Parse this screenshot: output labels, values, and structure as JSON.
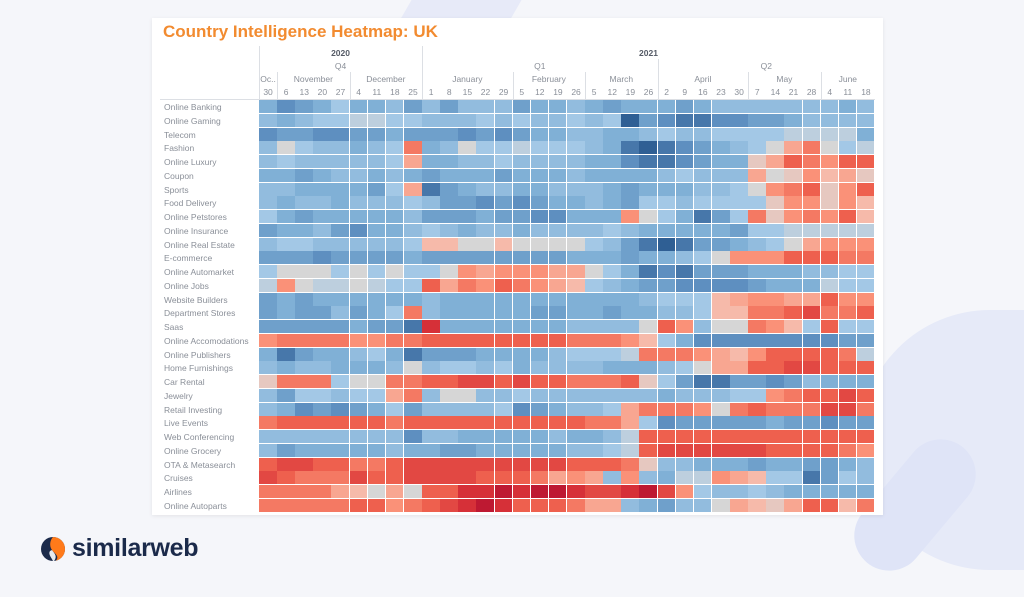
{
  "title": "Country Intelligence Heatmap: UK",
  "brand": "similarweb",
  "colors": {
    "title": "#f28b30",
    "brand_navy": "#1b2a4a",
    "brand_orange": "#ff7a1a",
    "negative": "#2f5f94",
    "neutral": "#d6d6d6",
    "positive": "#c51d30"
  },
  "chart_data": {
    "type": "heatmap",
    "title": "Country Intelligence Heatmap: UK",
    "color_scale": "diverging blue-gray-red (relative index, blue = low, red = high)",
    "legend": "none",
    "columns": [
      {
        "year": "2020",
        "quarter": "Q4",
        "month": "Oc..",
        "day": "30"
      },
      {
        "year": "2020",
        "quarter": "Q4",
        "month": "November",
        "day": "6"
      },
      {
        "year": "2020",
        "quarter": "Q4",
        "month": "November",
        "day": "13"
      },
      {
        "year": "2020",
        "quarter": "Q4",
        "month": "November",
        "day": "20"
      },
      {
        "year": "2020",
        "quarter": "Q4",
        "month": "November",
        "day": "27"
      },
      {
        "year": "2020",
        "quarter": "Q4",
        "month": "December",
        "day": "4"
      },
      {
        "year": "2020",
        "quarter": "Q4",
        "month": "December",
        "day": "11"
      },
      {
        "year": "2020",
        "quarter": "Q4",
        "month": "December",
        "day": "18"
      },
      {
        "year": "2020",
        "quarter": "Q4",
        "month": "December",
        "day": "25"
      },
      {
        "year": "2021",
        "quarter": "Q1",
        "month": "January",
        "day": "1"
      },
      {
        "year": "2021",
        "quarter": "Q1",
        "month": "January",
        "day": "8"
      },
      {
        "year": "2021",
        "quarter": "Q1",
        "month": "January",
        "day": "15"
      },
      {
        "year": "2021",
        "quarter": "Q1",
        "month": "January",
        "day": "22"
      },
      {
        "year": "2021",
        "quarter": "Q1",
        "month": "January",
        "day": "29"
      },
      {
        "year": "2021",
        "quarter": "Q1",
        "month": "February",
        "day": "5"
      },
      {
        "year": "2021",
        "quarter": "Q1",
        "month": "February",
        "day": "12"
      },
      {
        "year": "2021",
        "quarter": "Q1",
        "month": "February",
        "day": "19"
      },
      {
        "year": "2021",
        "quarter": "Q1",
        "month": "February",
        "day": "26"
      },
      {
        "year": "2021",
        "quarter": "Q1",
        "month": "March",
        "day": "5"
      },
      {
        "year": "2021",
        "quarter": "Q1",
        "month": "March",
        "day": "12"
      },
      {
        "year": "2021",
        "quarter": "Q1",
        "month": "March",
        "day": "19"
      },
      {
        "year": "2021",
        "quarter": "Q1",
        "month": "March",
        "day": "26"
      },
      {
        "year": "2021",
        "quarter": "Q2",
        "month": "April",
        "day": "2"
      },
      {
        "year": "2021",
        "quarter": "Q2",
        "month": "April",
        "day": "9"
      },
      {
        "year": "2021",
        "quarter": "Q2",
        "month": "April",
        "day": "16"
      },
      {
        "year": "2021",
        "quarter": "Q2",
        "month": "April",
        "day": "23"
      },
      {
        "year": "2021",
        "quarter": "Q2",
        "month": "April",
        "day": "30"
      },
      {
        "year": "2021",
        "quarter": "Q2",
        "month": "May",
        "day": "7"
      },
      {
        "year": "2021",
        "quarter": "Q2",
        "month": "May",
        "day": "14"
      },
      {
        "year": "2021",
        "quarter": "Q2",
        "month": "May",
        "day": "21"
      },
      {
        "year": "2021",
        "quarter": "Q2",
        "month": "May",
        "day": "28"
      },
      {
        "year": "2021",
        "quarter": "Q2",
        "month": "June",
        "day": "4"
      },
      {
        "year": "2021",
        "quarter": "Q2",
        "month": "June",
        "day": "11"
      },
      {
        "year": "2021",
        "quarter": "Q2",
        "month": "June",
        "day": "18"
      }
    ],
    "rows": [
      "Online Banking",
      "Online Gaming",
      "Telecom",
      "Fashion",
      "Online Luxury",
      "Coupon",
      "Sports",
      "Food Delivery",
      "Online Petstores",
      "Online Insurance",
      "Online Real Estate",
      "E-commerce",
      "Online Automarket",
      "Online Jobs",
      "Website Builders",
      "Department Stores",
      "Saas",
      "Online Accomodations",
      "Online Publishers",
      "Home Furnishings",
      "Car Rental",
      "Jewelry",
      "Retail Investing",
      "Live Events",
      "Web Conferencing",
      "Online Grocery",
      "OTA & Metasearch",
      "Cruises",
      "Airlines",
      "Online Autoparts"
    ],
    "values": [
      [
        -2,
        -3,
        -2.5,
        -2,
        -1,
        -2,
        -2,
        -1.5,
        -2.5,
        -1.5,
        -2.5,
        -1.5,
        -1.5,
        -1.5,
        -2.5,
        -2,
        -2,
        -1.5,
        -2,
        -2.5,
        -2,
        -2,
        -2,
        -2.5,
        -2,
        -1.5,
        -1.5,
        -1.5,
        -1.5,
        -1.5,
        -1.5,
        -1.5,
        -2,
        -1.5
      ],
      [
        -1.5,
        -2,
        -1.5,
        -1,
        -1,
        -0.5,
        -0.5,
        -1,
        -1,
        -1.5,
        -1.5,
        -1.5,
        -1,
        -1.5,
        -1,
        -1.5,
        -1.5,
        -1,
        -1.5,
        -1,
        -4,
        -2.5,
        -3,
        -3.5,
        -3.5,
        -3,
        -3,
        -2.5,
        -2.5,
        -2,
        -1.5,
        -1.5,
        -1.5,
        -1.5
      ],
      [
        -3,
        -2.5,
        -2.5,
        -3,
        -3,
        -2.5,
        -2.5,
        -2,
        -2.5,
        -2.5,
        -2.5,
        -3,
        -2.5,
        -3,
        -2.5,
        -2,
        -2,
        -1.5,
        -1.5,
        -2,
        -2,
        -1.5,
        -1,
        -1.5,
        -1.5,
        -1,
        -1,
        -1,
        -1,
        -0.5,
        -0.5,
        -0.5,
        -0.5,
        -2
      ],
      [
        -1.5,
        0,
        -1,
        -1.5,
        -1.5,
        -2,
        -1.5,
        -1,
        2.5,
        -2,
        -1.5,
        0,
        -1,
        -1,
        -0.5,
        -1,
        -1,
        -1,
        -1.5,
        -2,
        -3.5,
        -4,
        -3.5,
        -3,
        -2.5,
        -2,
        -1.5,
        -1,
        0,
        1.5,
        2.5,
        0,
        -1,
        -0.5
      ],
      [
        -1.5,
        -1,
        -1.5,
        -1.5,
        -1.5,
        -1.5,
        -1.5,
        -1,
        1.5,
        -2,
        -2,
        -1.5,
        -1.5,
        -1,
        -1.5,
        -1.5,
        -1.5,
        -1.5,
        -2,
        -2,
        -3,
        -3.5,
        -3.5,
        -3,
        -2.5,
        -2,
        -2,
        0.5,
        1.5,
        3,
        2.5,
        2,
        3,
        3
      ],
      [
        -2,
        -2,
        -2.5,
        -2,
        -1.5,
        -1.5,
        -2,
        -1.5,
        -2,
        -2.5,
        -2,
        -2,
        -2,
        -2.5,
        -2,
        -2,
        -2,
        -1.5,
        -2,
        -2,
        -2,
        -2,
        -1.5,
        -1,
        -1.5,
        -1.5,
        -1.5,
        1.5,
        0,
        0.5,
        2,
        1,
        1.5,
        0.5
      ],
      [
        -1.5,
        -1.5,
        -2,
        -2,
        -2,
        -2,
        -2.5,
        -1,
        1.5,
        -3.5,
        -2.5,
        -2,
        -1.5,
        -1.5,
        -2,
        -2,
        -1.5,
        -1.5,
        -1.5,
        -2,
        -2.5,
        -2,
        -2,
        -2,
        -1.5,
        -1.5,
        -1,
        0,
        2,
        2.5,
        3,
        0.5,
        2,
        3
      ],
      [
        -1.5,
        -2,
        -1.5,
        -1.5,
        -2,
        -1.5,
        -1.5,
        -1.5,
        -1,
        -1.5,
        -2.5,
        -2.5,
        -3,
        -2.5,
        -3,
        -2.5,
        -2,
        -2,
        -1.5,
        -2,
        -2.5,
        -1,
        -1,
        -1.5,
        -1,
        -1,
        -1,
        -1,
        0.5,
        2,
        2,
        0.5,
        2,
        1
      ],
      [
        -1,
        -2,
        -2.5,
        -2,
        -2,
        -2,
        -2,
        -2,
        -1.5,
        -2.5,
        -2.5,
        -2.5,
        -2,
        -2.5,
        -2.5,
        -3,
        -3,
        -2,
        -2,
        -2,
        2,
        0,
        -1,
        -2,
        -3.5,
        -2.5,
        -1,
        2.5,
        0.5,
        2,
        2.5,
        2,
        3,
        1
      ],
      [
        -2.5,
        -2,
        -2,
        -1.5,
        -2.5,
        -3,
        -2,
        -2,
        -1.5,
        -1,
        -1.5,
        -2,
        -1.5,
        -1.5,
        -2,
        -1.5,
        -1.5,
        -1.5,
        -1.5,
        -1,
        -1.5,
        -2,
        -2,
        -2,
        -2,
        -2,
        -2.5,
        -1,
        -1,
        -0.5,
        -0.5,
        -0.5,
        -0.5,
        -0.5
      ],
      [
        -1.5,
        -1,
        -1,
        -1.5,
        -1.5,
        -1.5,
        -1.5,
        -1.5,
        -1,
        1,
        1,
        0,
        0,
        1,
        0,
        0,
        0,
        0,
        -1,
        -1.5,
        -2.5,
        -3.5,
        -4,
        -3.5,
        -2.5,
        -2.5,
        -2,
        -1.5,
        -1,
        0,
        1.5,
        2,
        2,
        2
      ],
      [
        -2.5,
        -2.5,
        -2.5,
        -3,
        -2.5,
        -2.5,
        -2.5,
        -2.5,
        -2,
        -2.5,
        -2.5,
        -2.5,
        -2.5,
        -2.5,
        -2.5,
        -2.5,
        -2.5,
        -2,
        -2,
        -2,
        -2.5,
        -2,
        -2,
        -1.5,
        -1,
        0,
        2,
        2,
        2,
        3,
        3,
        3,
        2.5,
        2.5
      ],
      [
        -1,
        0,
        0,
        0,
        -1,
        0,
        -1,
        0,
        -1,
        -1,
        0,
        2,
        1.5,
        2,
        2,
        2,
        1.5,
        1.5,
        0,
        -1,
        -2,
        -3.5,
        -3,
        -3.5,
        -2.5,
        -2.5,
        -2.5,
        -2,
        -2,
        -2,
        -1.5,
        -1.5,
        -1,
        -1
      ],
      [
        -0.5,
        2,
        0,
        -0.5,
        -0.5,
        0,
        -0.5,
        -1,
        -1,
        3,
        1.5,
        2.5,
        2,
        3,
        2.5,
        2,
        1.5,
        1,
        -1,
        -1.5,
        -2,
        -2.5,
        -2.5,
        -3,
        -3,
        -3,
        -3,
        -2.5,
        -2,
        -2,
        -2,
        -0.5,
        -1,
        -1
      ],
      [
        -2.5,
        -2,
        -2.5,
        -2,
        -2,
        -2,
        -2,
        -2,
        -2,
        -1.5,
        -2,
        -2,
        -2,
        -2,
        -2,
        -2,
        -2,
        -2,
        -2,
        -2,
        -2,
        -1.5,
        -1,
        -1,
        -1,
        1,
        1.5,
        2,
        2,
        1.5,
        1.5,
        3,
        2,
        2
      ],
      [
        -2.5,
        -2,
        -2.5,
        -2.5,
        -1.5,
        -2.5,
        -2,
        -1,
        2.5,
        -1.5,
        -2,
        -2,
        -2,
        -2,
        -2,
        -2.5,
        -2.5,
        -2,
        -2,
        -2.5,
        -2,
        -2,
        -1.5,
        -1.5,
        -1,
        1,
        1,
        2.5,
        2.5,
        3,
        3.5,
        2.5,
        2.5,
        3
      ],
      [
        -2.5,
        -2.5,
        -2.5,
        -2.5,
        -2.5,
        -2,
        -2.5,
        -2.5,
        -3.5,
        4,
        -2,
        -2,
        -2,
        -2,
        -2,
        -2,
        -2,
        -1.5,
        -1.5,
        -1.5,
        -1.5,
        0,
        3,
        2,
        -1.5,
        0,
        0,
        2.5,
        2,
        1,
        -1,
        3,
        -1,
        -1
      ],
      [
        2,
        2.5,
        2.5,
        2.5,
        2.5,
        2,
        2,
        2.5,
        2.5,
        3,
        3,
        3,
        3,
        3,
        3,
        3,
        3,
        2.5,
        2.5,
        2.5,
        2,
        1,
        -1,
        -2,
        -3,
        -3,
        -3,
        -3,
        -3,
        -3,
        -3,
        -3,
        -2.5,
        -2.5
      ],
      [
        -2,
        -3.5,
        -2.5,
        -2,
        -2,
        -1.5,
        -1,
        -2,
        -3.5,
        -2.5,
        -2.5,
        -2.5,
        -2,
        -2,
        -2,
        -2,
        -1.5,
        -1,
        -1,
        -1,
        -0.5,
        2.5,
        2.5,
        2.5,
        2,
        1.5,
        1,
        2,
        3,
        3,
        3,
        3,
        2.5,
        -0.5
      ],
      [
        -1.5,
        -2,
        -1.5,
        -1.5,
        -2,
        -2,
        -2,
        -1.5,
        0,
        -1.5,
        -1,
        -1,
        -1.5,
        -1,
        -2,
        -1.5,
        -1.5,
        -1.5,
        -1.5,
        -2,
        -2,
        -2,
        -1.5,
        -1,
        0,
        1.5,
        1.5,
        3,
        3,
        3.5,
        3.5,
        3,
        3,
        3
      ],
      [
        0.5,
        2.5,
        2.5,
        2.5,
        -1,
        0,
        0,
        2.5,
        2.5,
        3,
        3,
        3.5,
        3.5,
        3,
        3.5,
        3,
        3,
        2.5,
        2.5,
        2.5,
        3,
        0.5,
        -1,
        -2.5,
        -3.5,
        -3.5,
        -2.5,
        -2.5,
        -3,
        -2.5,
        -1.5,
        -2,
        -2,
        -2
      ],
      [
        -1.5,
        -2.5,
        -1,
        -1,
        -1.5,
        -1,
        -1,
        1.5,
        2.5,
        -1.5,
        0,
        0,
        -1.5,
        -1.5,
        -1,
        -1.5,
        -1.5,
        -1.5,
        -1.5,
        -1.5,
        -1.5,
        -1.5,
        -2,
        -1.5,
        -1.5,
        -1.5,
        -1,
        -1,
        2,
        2.5,
        3,
        3,
        3.5,
        3
      ],
      [
        -1.5,
        -2,
        -3,
        -2.5,
        -3,
        -2.5,
        -2,
        -1,
        -2.5,
        -1.5,
        -1.5,
        -1.5,
        -1.5,
        -1,
        -3,
        -2.5,
        -2,
        -1.5,
        -1.5,
        -1,
        1.5,
        2.5,
        2.5,
        2.5,
        2,
        0,
        2.5,
        3,
        2.5,
        2.5,
        2.5,
        3.5,
        3.5,
        2.5
      ],
      [
        2.5,
        3,
        3,
        3,
        3,
        3,
        3,
        2.5,
        3,
        3,
        3,
        3,
        3,
        3,
        3,
        3,
        3,
        3,
        2.5,
        2.5,
        1.5,
        -1,
        -3,
        -2.5,
        -2.5,
        -2.5,
        -2.5,
        -2.5,
        -2,
        -2.5,
        -2.5,
        -3,
        -2.5,
        -2.5
      ],
      [
        -1.5,
        -1.5,
        -1.5,
        -1.5,
        -1.5,
        -1.5,
        -1.5,
        -1.5,
        -3,
        -1.5,
        -1.5,
        -2,
        -2,
        -2,
        -2,
        -2,
        -1.5,
        -2,
        -2,
        -1.5,
        -0.5,
        3,
        3,
        3,
        3,
        3,
        3,
        3,
        3,
        3,
        3,
        3,
        3,
        3
      ],
      [
        -1.5,
        -2.5,
        -2,
        -2,
        -2,
        -2,
        -2,
        -1.5,
        -2,
        -2,
        -2.5,
        -2.5,
        -2,
        -2,
        -2,
        -2,
        -2,
        -1.5,
        -1.5,
        -1,
        -0.5,
        3,
        3.5,
        3.5,
        3.5,
        3.5,
        3.5,
        3.5,
        3,
        3,
        3,
        3,
        2.5,
        2
      ],
      [
        3,
        3.5,
        3.5,
        3,
        3,
        2.5,
        2.5,
        3,
        3.5,
        3.5,
        3.5,
        3.5,
        3.5,
        3.5,
        3.5,
        3.5,
        3.5,
        3,
        3,
        3,
        2.5,
        0.5,
        -1.5,
        -1.5,
        -2,
        -2,
        -2,
        -2.5,
        -2,
        -2,
        -2.5,
        -2.5,
        -2,
        -1.5
      ],
      [
        3.5,
        3,
        2.5,
        2.5,
        2.5,
        3.5,
        3,
        3,
        3.5,
        3.5,
        3.5,
        3.5,
        3,
        3,
        3,
        2.5,
        1.5,
        2,
        1.5,
        -1.5,
        2,
        -1.5,
        -2,
        -0.5,
        -0.5,
        2,
        1.5,
        1,
        -1,
        -1,
        -3.5,
        -2.5,
        -1,
        -1.5
      ],
      [
        2.5,
        2.5,
        2.5,
        2.5,
        1.5,
        1,
        0,
        1.5,
        0,
        3,
        3,
        4,
        4,
        4.5,
        4,
        4.5,
        4.5,
        4,
        3.5,
        3.5,
        4,
        4.5,
        3.5,
        2,
        -1,
        -1.5,
        -1.5,
        -1,
        -1.5,
        -2,
        -2,
        -2,
        -2,
        -2
      ],
      [
        2.5,
        2.5,
        2.5,
        2.5,
        2.5,
        3,
        3,
        2,
        2.5,
        3,
        3.5,
        4,
        4.5,
        4,
        3,
        3,
        3,
        2.5,
        1.5,
        1.5,
        -1.5,
        -2,
        -2.5,
        -1.5,
        -1.5,
        0,
        1.5,
        1,
        0.5,
        1.5,
        3,
        3,
        1,
        2.5
      ]
    ]
  }
}
